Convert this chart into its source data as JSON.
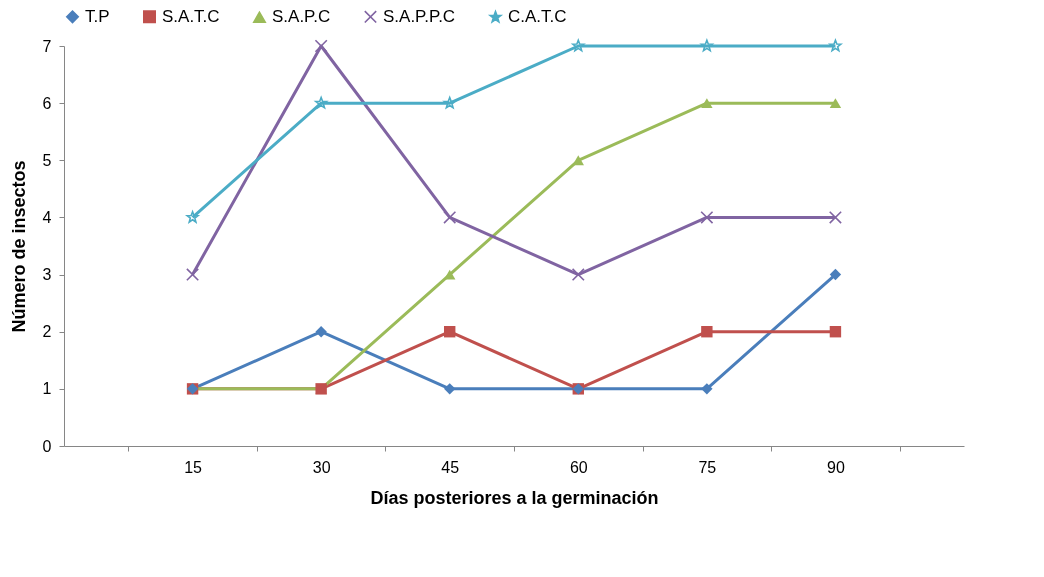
{
  "chart_data": {
    "type": "line",
    "xlabel": "Días posteriores a la germinación",
    "ylabel": "Número de insectos",
    "categories": [
      "15",
      "30",
      "45",
      "60",
      "75",
      "90"
    ],
    "ylim": [
      0,
      7
    ],
    "yticks": [
      0,
      1,
      2,
      3,
      4,
      5,
      6,
      7
    ],
    "grid": false,
    "legend": "top",
    "series": [
      {
        "name": "T.P",
        "color": "#4a7ebb",
        "marker": "diamond",
        "values": [
          1,
          2,
          1,
          1,
          1,
          3
        ]
      },
      {
        "name": "S.A.T.C",
        "color": "#c0504d",
        "marker": "square",
        "values": [
          1,
          1,
          2,
          1,
          2,
          2
        ]
      },
      {
        "name": "S.A.P.C",
        "color": "#9bbb59",
        "marker": "triangle",
        "values": [
          1,
          1,
          3,
          5,
          6,
          6
        ]
      },
      {
        "name": "S.A.P.P.C",
        "color": "#8064a2",
        "marker": "cross",
        "values": [
          3,
          7,
          4,
          3,
          4,
          4
        ]
      },
      {
        "name": "C.A.T.C",
        "color": "#4bacc6",
        "marker": "star",
        "values": [
          4,
          6,
          6,
          7,
          7,
          7
        ]
      }
    ]
  }
}
